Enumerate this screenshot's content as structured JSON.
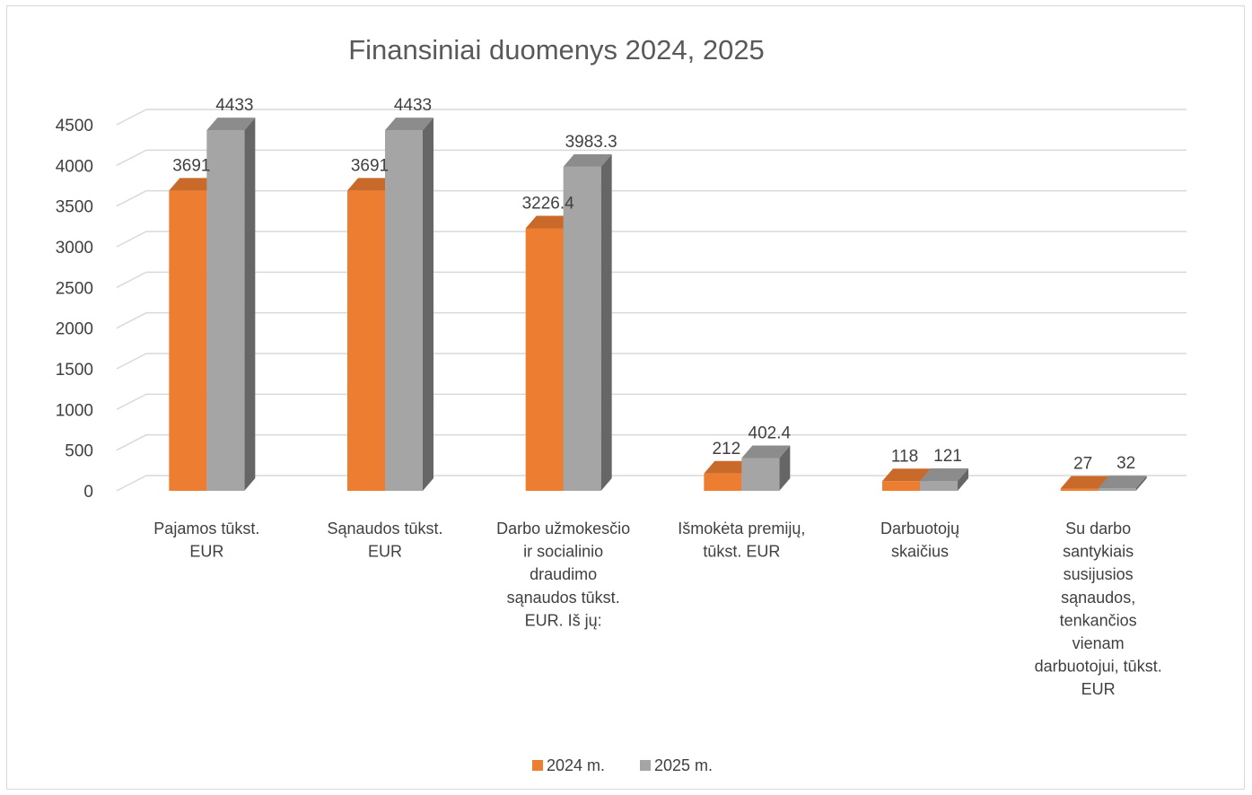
{
  "chart_data": {
    "type": "bar",
    "title": "Finansiniai duomenys 2024, 2025",
    "categories": [
      [
        "Pajamos tūkst.",
        "EUR"
      ],
      [
        "Sąnaudos tūkst.",
        "EUR"
      ],
      [
        "Darbo užmokesčio",
        "ir socialinio",
        "draudimo",
        "sąnaudos tūkst.",
        "EUR. Iš jų:"
      ],
      [
        "Išmokėta premijų,",
        "tūkst. EUR"
      ],
      [
        "Darbuotojų",
        "skaičius"
      ],
      [
        "Su darbo",
        "santykiais",
        "susijusios",
        "sąnaudos,",
        "tenkančios",
        "vienam",
        "darbuotojui, tūkst.",
        "EUR"
      ]
    ],
    "series": [
      {
        "name": "2024 m.",
        "color": "#ed7d31",
        "values": [
          3691,
          3691,
          3226.4,
          212,
          118,
          27
        ]
      },
      {
        "name": "2025 m.",
        "color": "#a5a5a5",
        "values": [
          4433,
          4433,
          3983.3,
          402.4,
          121,
          32
        ]
      }
    ],
    "ylim": [
      0,
      4500
    ],
    "yticks": [
      0,
      500,
      1000,
      1500,
      2000,
      2500,
      3000,
      3500,
      4000,
      4500
    ],
    "grid": true,
    "legend_position": "bottom"
  }
}
